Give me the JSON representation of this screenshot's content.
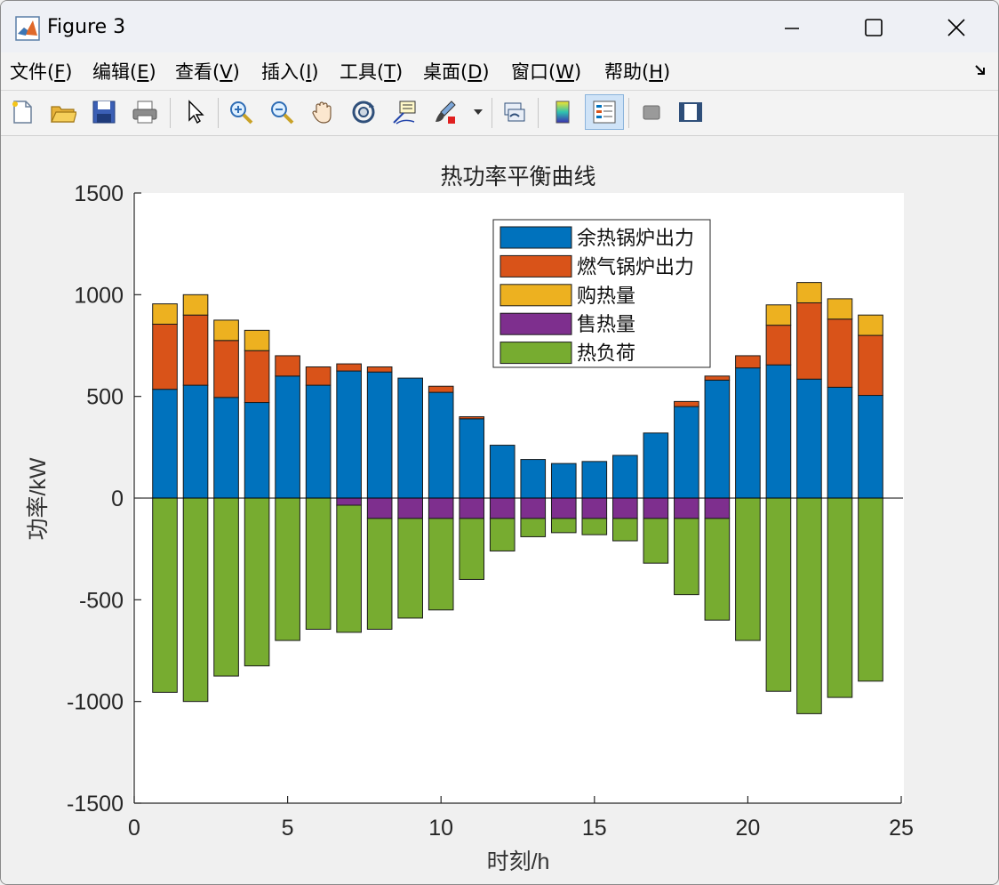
{
  "window": {
    "title": "Figure 3",
    "minimize_label": "—",
    "maximize_label": "☐",
    "close_label": "✕"
  },
  "menu": {
    "items": [
      {
        "label": "文件(",
        "key": "F",
        "tail": ")"
      },
      {
        "label": "编辑(",
        "key": "E",
        "tail": ")"
      },
      {
        "label": "查看(",
        "key": "V",
        "tail": ")"
      },
      {
        "label": "插入(",
        "key": "I",
        "tail": ")"
      },
      {
        "label": "工具(",
        "key": "T",
        "tail": ")"
      },
      {
        "label": "桌面(",
        "key": "D",
        "tail": ")"
      },
      {
        "label": "窗口(",
        "key": "W",
        "tail": ")"
      },
      {
        "label": "帮助(",
        "key": "H",
        "tail": ")"
      }
    ]
  },
  "toolbar": {
    "icons": [
      "new-figure-icon",
      "open-file-icon",
      "save-icon",
      "print-icon",
      "pointer-icon",
      "zoom-in-icon",
      "zoom-out-icon",
      "pan-hand-icon",
      "rotate-3d-icon",
      "data-cursor-icon",
      "brush-icon",
      "link-plot-icon",
      "colorbar-icon",
      "legend-icon",
      "hide-plot-tools-icon",
      "show-plot-tools-icon"
    ]
  },
  "colors": {
    "waste_heat_boiler": "#0072BD",
    "gas_boiler": "#D95319",
    "purchase": "#EDB120",
    "sell": "#7E2F8E",
    "load": "#77AC30"
  },
  "chart_data": {
    "type": "bar",
    "title": "热功率平衡曲线",
    "xlabel": "时刻/h",
    "ylabel": "功率/kW",
    "xlim": [
      0,
      25
    ],
    "ylim": [
      -1500,
      1500
    ],
    "xticks": [
      "0",
      "5",
      "10",
      "15",
      "20",
      "25"
    ],
    "yticks": [
      "1500",
      "1000",
      "500",
      "0",
      "-500",
      "-1000",
      "-1500"
    ],
    "legend_position": "top-right",
    "stacked": true,
    "categories": [
      1,
      2,
      3,
      4,
      5,
      6,
      7,
      8,
      9,
      10,
      11,
      12,
      13,
      14,
      15,
      16,
      17,
      18,
      19,
      20,
      21,
      22,
      23,
      24
    ],
    "series": [
      {
        "name": "余热锅炉出力",
        "sign": "positive",
        "values": [
          535,
          555,
          495,
          470,
          600,
          555,
          625,
          620,
          590,
          520,
          390,
          260,
          190,
          170,
          180,
          210,
          320,
          450,
          580,
          640,
          655,
          585,
          545,
          505
        ]
      },
      {
        "name": "燃气锅炉出力",
        "sign": "positive",
        "values": [
          320,
          345,
          280,
          255,
          100,
          90,
          35,
          25,
          0,
          30,
          10,
          0,
          0,
          0,
          0,
          0,
          0,
          25,
          20,
          60,
          195,
          375,
          335,
          295
        ]
      },
      {
        "name": "购热量",
        "sign": "positive",
        "values": [
          100,
          100,
          100,
          100,
          0,
          0,
          0,
          0,
          0,
          0,
          0,
          0,
          0,
          0,
          0,
          0,
          0,
          0,
          0,
          0,
          100,
          100,
          100,
          100
        ]
      },
      {
        "name": "售热量",
        "sign": "negative",
        "values": [
          0,
          0,
          0,
          0,
          0,
          0,
          -35,
          -100,
          -100,
          -100,
          -100,
          -100,
          -100,
          -100,
          -100,
          -100,
          -100,
          -100,
          -100,
          0,
          0,
          0,
          0,
          0
        ]
      },
      {
        "name": "热负荷",
        "sign": "negative",
        "values": [
          -955,
          -1000,
          -875,
          -825,
          -700,
          -645,
          -625,
          -545,
          -490,
          -450,
          -300,
          -160,
          -90,
          -70,
          -80,
          -110,
          -220,
          -375,
          -500,
          -700,
          -950,
          -1060,
          -980,
          -900
        ]
      }
    ]
  }
}
